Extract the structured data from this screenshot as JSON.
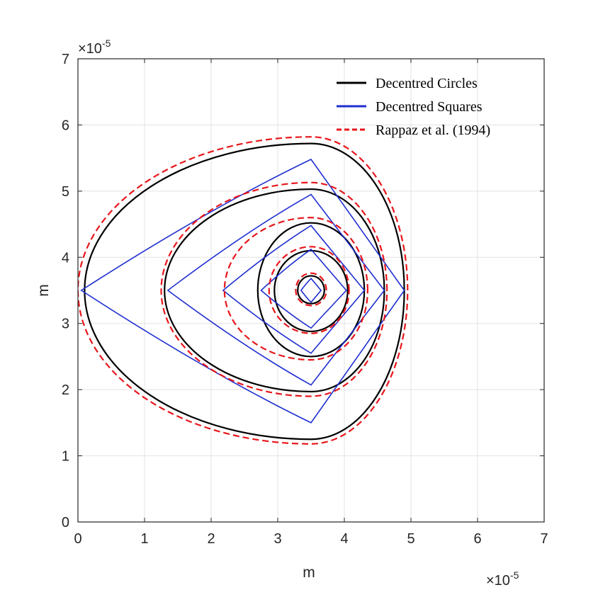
{
  "chart_data": {
    "type": "line",
    "xlabel": "m",
    "ylabel": "m",
    "x_exponent": "×10",
    "x_exponent_power": "-5",
    "y_exponent": "×10",
    "y_exponent_power": "-5",
    "xlim": [
      0,
      7
    ],
    "ylim": [
      0,
      7
    ],
    "xticks": [
      "0",
      "1",
      "2",
      "3",
      "4",
      "5",
      "6",
      "7"
    ],
    "yticks": [
      "0",
      "1",
      "2",
      "3",
      "4",
      "5",
      "6",
      "7"
    ],
    "grid": true,
    "legend_position": "top-right",
    "center": [
      3.5,
      3.5
    ],
    "series": [
      {
        "name": "Decentred Circles",
        "color": "#000000",
        "style": "solid",
        "shapes": [
          {
            "left": 3.3,
            "right": 3.7,
            "bottom": 3.3,
            "top": 3.72
          },
          {
            "left": 2.95,
            "right": 4.05,
            "bottom": 2.88,
            "top": 4.1
          },
          {
            "left": 2.7,
            "right": 4.3,
            "bottom": 2.5,
            "top": 4.52
          },
          {
            "left": 1.3,
            "right": 4.6,
            "bottom": 1.97,
            "top": 5.03
          },
          {
            "left": 0.1,
            "right": 4.9,
            "bottom": 1.25,
            "top": 5.72
          }
        ]
      },
      {
        "name": "Decentred Squares",
        "color": "#1f2fd0",
        "style": "solid",
        "shapes": [
          {
            "left": 3.35,
            "right": 3.65,
            "top": 3.68,
            "bottom": 3.32
          },
          {
            "left": 2.75,
            "right": 4.03,
            "top": 4.12,
            "bottom": 2.93
          },
          {
            "left": 2.18,
            "right": 4.3,
            "top": 4.48,
            "bottom": 2.55
          },
          {
            "left": 1.35,
            "right": 4.6,
            "top": 4.95,
            "bottom": 2.07
          },
          {
            "left": 0.05,
            "right": 4.9,
            "top": 5.48,
            "bottom": 1.5
          }
        ]
      },
      {
        "name": "Rappaz et al. (1994)",
        "color": "#e8161b",
        "style": "dashed",
        "shapes": [
          {
            "left": 3.27,
            "right": 3.73,
            "bottom": 3.27,
            "top": 3.76
          },
          {
            "left": 2.87,
            "right": 4.07,
            "bottom": 2.85,
            "top": 4.16
          },
          {
            "left": 2.2,
            "right": 4.35,
            "bottom": 2.45,
            "top": 4.6
          },
          {
            "left": 1.25,
            "right": 4.64,
            "bottom": 1.9,
            "top": 5.13
          },
          {
            "left": 0.0,
            "right": 4.95,
            "bottom": 1.18,
            "top": 5.82
          }
        ]
      }
    ]
  }
}
